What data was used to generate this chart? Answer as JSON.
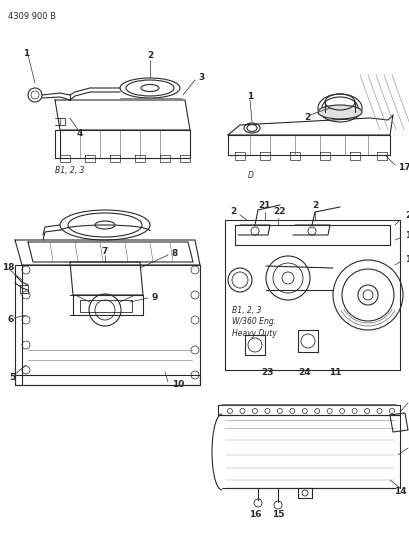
{
  "title": "4309 900 B",
  "bg_color": "#ffffff",
  "line_color": "#2a2a2a",
  "text_color": "#2a2a2a",
  "fig_width": 4.1,
  "fig_height": 5.33,
  "dpi": 100,
  "labels": {
    "top_left_caption": "B1, 2, 3",
    "top_right_caption": "D",
    "mid_caption_line1": "B1, 2, 3",
    "mid_caption_line2": "W/360 Eng.",
    "mid_caption_line3": "Heavy Duty"
  }
}
